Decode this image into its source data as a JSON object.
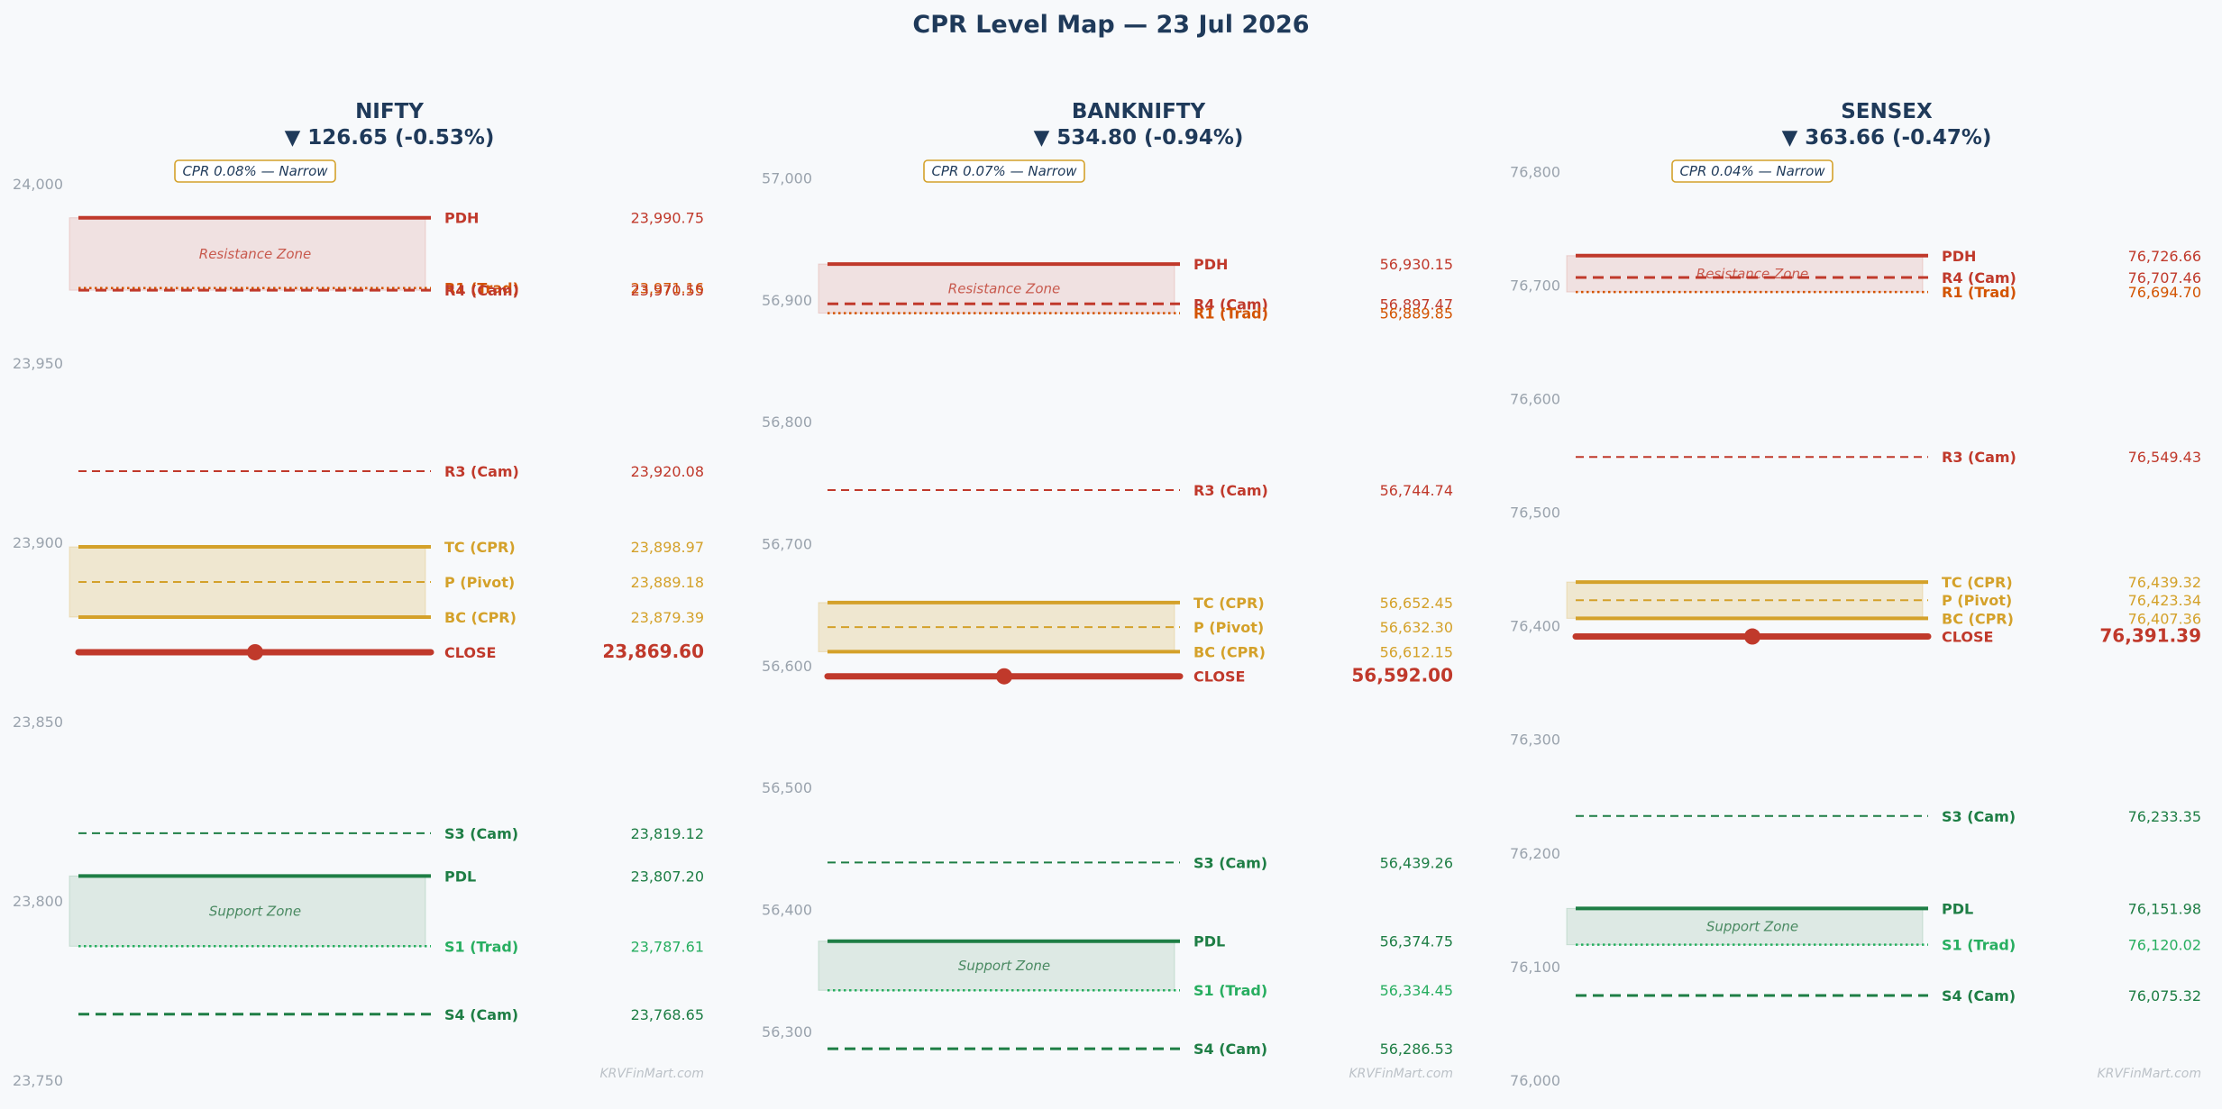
{
  "title": "CPR Level Map — 23 Jul 2026",
  "colors": {
    "resistance": "#c0392b",
    "r1": "#d35400",
    "cpr": "#d4a12a",
    "close": "#c0392b",
    "support": "#1e7e45",
    "s1": "#27ae60",
    "axis": "#9aa3ad",
    "title": "#1f3a5a"
  },
  "watermark": "KRVFinMart.com",
  "zone_labels": {
    "resistance": "Resistance Zone",
    "support": "Support Zone"
  },
  "chart_data": [
    {
      "type": "line-levels",
      "name": "NIFTY",
      "change": "▼ 126.65 (-0.53%)",
      "cpr_badge": "CPR 0.08% — Narrow",
      "ylim": [
        23750,
        24005
      ],
      "yticks": [
        "24,000",
        "23,950",
        "23,900",
        "23,850",
        "23,800",
        "23,750"
      ],
      "ytick_values": [
        24000,
        23950,
        23900,
        23850,
        23800,
        23750
      ],
      "levels": [
        {
          "key": "PDH",
          "label": "PDH",
          "value": 23990.75,
          "value_text": "23,990.75",
          "style": "solid",
          "kind": "resistance"
        },
        {
          "key": "R1",
          "label": "R1 (Trad)",
          "value": 23971.16,
          "value_text": "23,971.16",
          "style": "dotted",
          "kind": "r1"
        },
        {
          "key": "R4",
          "label": "R4 (Cam)",
          "value": 23970.55,
          "value_text": "23,970.55",
          "style": "dashed",
          "kind": "resistance"
        },
        {
          "key": "R3",
          "label": "R3 (Cam)",
          "value": 23920.08,
          "value_text": "23,920.08",
          "style": "dashed-thin",
          "kind": "resistance"
        },
        {
          "key": "TC",
          "label": "TC (CPR)",
          "value": 23898.97,
          "value_text": "23,898.97",
          "style": "solid",
          "kind": "cpr"
        },
        {
          "key": "P",
          "label": "P (Pivot)",
          "value": 23889.18,
          "value_text": "23,889.18",
          "style": "dashed-thin",
          "kind": "cpr"
        },
        {
          "key": "BC",
          "label": "BC (CPR)",
          "value": 23879.39,
          "value_text": "23,879.39",
          "style": "solid",
          "kind": "cpr"
        },
        {
          "key": "CLOSE",
          "label": "CLOSE",
          "value": 23869.6,
          "value_text": "23,869.60",
          "style": "close",
          "kind": "close"
        },
        {
          "key": "S3",
          "label": "S3 (Cam)",
          "value": 23819.12,
          "value_text": "23,819.12",
          "style": "dashed-thin",
          "kind": "support"
        },
        {
          "key": "PDL",
          "label": "PDL",
          "value": 23807.2,
          "value_text": "23,807.20",
          "style": "solid",
          "kind": "support"
        },
        {
          "key": "S1",
          "label": "S1 (Trad)",
          "value": 23787.61,
          "value_text": "23,787.61",
          "style": "dotted",
          "kind": "s1"
        },
        {
          "key": "S4",
          "label": "S4 (Cam)",
          "value": 23768.65,
          "value_text": "23,768.65",
          "style": "dashed",
          "kind": "support"
        }
      ]
    },
    {
      "type": "line-levels",
      "name": "BANKNIFTY",
      "change": "▼ 534.80 (-0.94%)",
      "cpr_badge": "CPR 0.07% — Narrow",
      "ylim": [
        56260,
        57010
      ],
      "yticks": [
        "57,000",
        "56,900",
        "56,800",
        "56,700",
        "56,600",
        "56,500",
        "56,400",
        "56,300"
      ],
      "ytick_values": [
        57000,
        56900,
        56800,
        56700,
        56600,
        56500,
        56400,
        56300
      ],
      "levels": [
        {
          "key": "PDH",
          "label": "PDH",
          "value": 56930.15,
          "value_text": "56,930.15",
          "style": "solid",
          "kind": "resistance"
        },
        {
          "key": "R4",
          "label": "R4 (Cam)",
          "value": 56897.47,
          "value_text": "56,897.47",
          "style": "dashed",
          "kind": "resistance"
        },
        {
          "key": "R1",
          "label": "R1 (Trad)",
          "value": 56889.85,
          "value_text": "56,889.85",
          "style": "dotted",
          "kind": "r1"
        },
        {
          "key": "R3",
          "label": "R3 (Cam)",
          "value": 56744.74,
          "value_text": "56,744.74",
          "style": "dashed-thin",
          "kind": "resistance"
        },
        {
          "key": "TC",
          "label": "TC (CPR)",
          "value": 56652.45,
          "value_text": "56,652.45",
          "style": "solid",
          "kind": "cpr"
        },
        {
          "key": "P",
          "label": "P (Pivot)",
          "value": 56632.3,
          "value_text": "56,632.30",
          "style": "dashed-thin",
          "kind": "cpr"
        },
        {
          "key": "BC",
          "label": "BC (CPR)",
          "value": 56612.15,
          "value_text": "56,612.15",
          "style": "solid",
          "kind": "cpr"
        },
        {
          "key": "CLOSE",
          "label": "CLOSE",
          "value": 56592.0,
          "value_text": "56,592.00",
          "style": "close",
          "kind": "close"
        },
        {
          "key": "S3",
          "label": "S3 (Cam)",
          "value": 56439.26,
          "value_text": "56,439.26",
          "style": "dashed-thin",
          "kind": "support"
        },
        {
          "key": "PDL",
          "label": "PDL",
          "value": 56374.75,
          "value_text": "56,374.75",
          "style": "solid",
          "kind": "support"
        },
        {
          "key": "S1",
          "label": "S1 (Trad)",
          "value": 56334.45,
          "value_text": "56,334.45",
          "style": "dotted",
          "kind": "s1"
        },
        {
          "key": "S4",
          "label": "S4 (Cam)",
          "value": 56286.53,
          "value_text": "56,286.53",
          "style": "dashed",
          "kind": "support"
        }
      ]
    },
    {
      "type": "line-levels",
      "name": "SENSEX",
      "change": "▼ 363.66 (-0.47%)",
      "cpr_badge": "CPR 0.04% — Narrow",
      "ylim": [
        76000,
        76805
      ],
      "yticks": [
        "76,800",
        "76,700",
        "76,600",
        "76,500",
        "76,400",
        "76,300",
        "76,200",
        "76,100",
        "76,000"
      ],
      "ytick_values": [
        76800,
        76700,
        76600,
        76500,
        76400,
        76300,
        76200,
        76100,
        76000
      ],
      "levels": [
        {
          "key": "PDH",
          "label": "PDH",
          "value": 76726.66,
          "value_text": "76,726.66",
          "style": "solid",
          "kind": "resistance"
        },
        {
          "key": "R4",
          "label": "R4 (Cam)",
          "value": 76707.46,
          "value_text": "76,707.46",
          "style": "dashed",
          "kind": "resistance"
        },
        {
          "key": "R1",
          "label": "R1 (Trad)",
          "value": 76694.7,
          "value_text": "76,694.70",
          "style": "dotted",
          "kind": "r1"
        },
        {
          "key": "R3",
          "label": "R3 (Cam)",
          "value": 76549.43,
          "value_text": "76,549.43",
          "style": "dashed-thin",
          "kind": "resistance"
        },
        {
          "key": "TC",
          "label": "TC (CPR)",
          "value": 76439.32,
          "value_text": "76,439.32",
          "style": "solid",
          "kind": "cpr"
        },
        {
          "key": "P",
          "label": "P (Pivot)",
          "value": 76423.34,
          "value_text": "76,423.34",
          "style": "dashed-thin",
          "kind": "cpr"
        },
        {
          "key": "BC",
          "label": "BC (CPR)",
          "value": 76407.36,
          "value_text": "76,407.36",
          "style": "solid",
          "kind": "cpr"
        },
        {
          "key": "CLOSE",
          "label": "CLOSE",
          "value": 76391.39,
          "value_text": "76,391.39",
          "style": "close",
          "kind": "close"
        },
        {
          "key": "S3",
          "label": "S3 (Cam)",
          "value": 76233.35,
          "value_text": "76,233.35",
          "style": "dashed-thin",
          "kind": "support"
        },
        {
          "key": "PDL",
          "label": "PDL",
          "value": 76151.98,
          "value_text": "76,151.98",
          "style": "solid",
          "kind": "support"
        },
        {
          "key": "S1",
          "label": "S1 (Trad)",
          "value": 76120.02,
          "value_text": "76,120.02",
          "style": "dotted",
          "kind": "s1"
        },
        {
          "key": "S4",
          "label": "S4 (Cam)",
          "value": 76075.32,
          "value_text": "76,075.32",
          "style": "dashed",
          "kind": "support"
        }
      ]
    }
  ]
}
